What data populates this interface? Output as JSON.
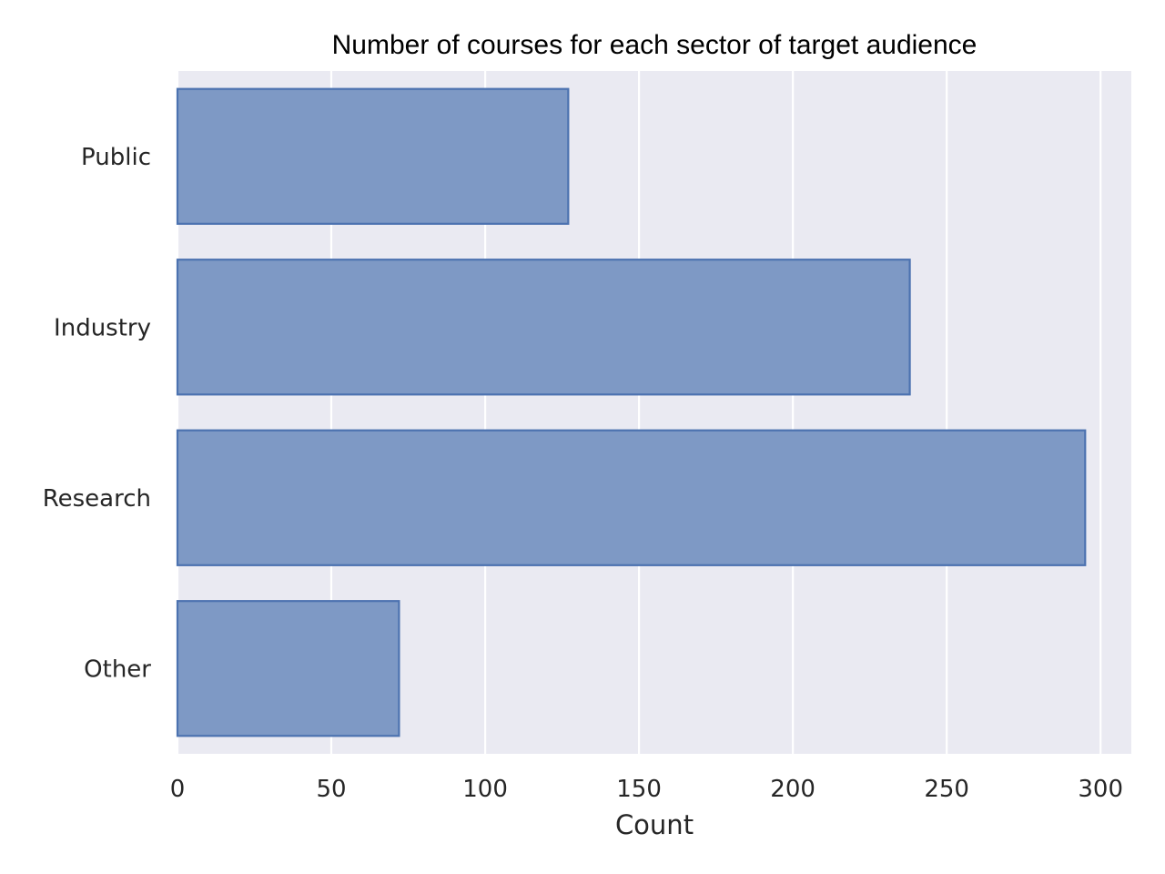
{
  "chart_data": {
    "type": "bar",
    "orientation": "horizontal",
    "title": "Number of courses for each sector of target audience",
    "xlabel": "Count",
    "ylabel": "",
    "categories": [
      "Public",
      "Industry",
      "Research",
      "Other"
    ],
    "values": [
      127,
      238,
      295,
      72
    ],
    "xlim": [
      0,
      310
    ],
    "xticks": [
      "0",
      "50",
      "100",
      "150",
      "200",
      "250",
      "300"
    ],
    "grid": true,
    "colors": {
      "plot_background": "#EAEAF2",
      "bar_fill": "#7A96C3",
      "bar_edge": "#4C72B0",
      "grid": "#FFFFFF"
    }
  }
}
